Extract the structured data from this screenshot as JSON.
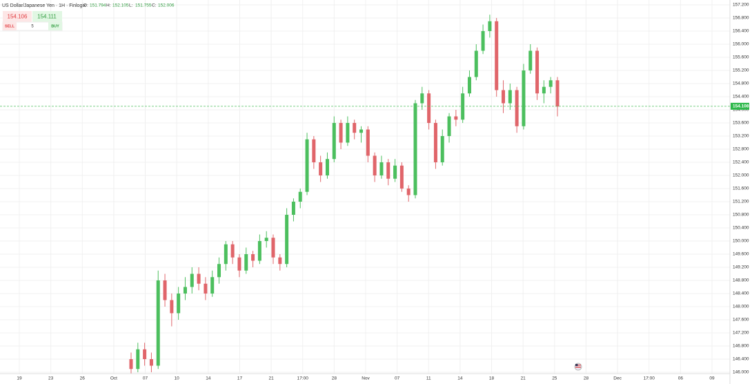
{
  "header": {
    "title": "US Dollar/Japanese Yen · 1H · Finlogix",
    "ohlc": [
      {
        "label": "O:",
        "value": 151.794
      },
      {
        "label": "H:",
        "value": 152.105
      },
      {
        "label": "L:",
        "value": 151.755
      },
      {
        "label": "C:",
        "value": 152.006
      }
    ]
  },
  "trade": {
    "sell_price": 154.106,
    "buy_price": 154.111,
    "quantity": 5,
    "sell": "SELL",
    "buy": "BUY"
  },
  "chart_data": {
    "type": "candlestick",
    "up_color": "#4cbf5e",
    "down_color": "#e0656a",
    "grid": true,
    "ylim": [
      146,
      157.2
    ],
    "yticks": [
      {
        "value": 157.2,
        "label": "157.200"
      },
      {
        "value": 156.8,
        "label": "156.800"
      },
      {
        "value": 156.4,
        "label": "156.400"
      },
      {
        "value": 156,
        "label": "156.000"
      },
      {
        "value": 155.6,
        "label": "155.600"
      },
      {
        "value": 155.2,
        "label": "155.200"
      },
      {
        "value": 154.8,
        "label": "154.800"
      },
      {
        "value": 154.4,
        "label": "154.400"
      },
      {
        "value": 154,
        "label": "154.000"
      },
      {
        "value": 153.6,
        "label": "153.600"
      },
      {
        "value": 153.2,
        "label": "153.200"
      },
      {
        "value": 152.8,
        "label": "152.800"
      },
      {
        "value": 152.4,
        "label": "152.400"
      },
      {
        "value": 152,
        "label": "152.000"
      },
      {
        "value": 151.6,
        "label": "151.600"
      },
      {
        "value": 151.2,
        "label": "151.200"
      },
      {
        "value": 150.8,
        "label": "150.800"
      },
      {
        "value": 150.4,
        "label": "150.400"
      },
      {
        "value": 150,
        "label": "150.000"
      },
      {
        "value": 149.6,
        "label": "149.600"
      },
      {
        "value": 149.2,
        "label": "149.200"
      },
      {
        "value": 148.8,
        "label": "148.800"
      },
      {
        "value": 148.4,
        "label": "148.400"
      },
      {
        "value": 148,
        "label": "148.000"
      },
      {
        "value": 147.6,
        "label": "147.600"
      },
      {
        "value": 147.2,
        "label": "147.200"
      },
      {
        "value": 146.8,
        "label": "146.800"
      },
      {
        "value": 146.4,
        "label": "146.400"
      },
      {
        "value": 146,
        "label": "146.000"
      }
    ],
    "x_labels": [
      "19",
      "23",
      "26",
      "Oct",
      "07",
      "10",
      "14",
      "17",
      "21",
      "17:00",
      "28",
      "Nov",
      "07",
      "11",
      "14",
      "18",
      "21",
      "25",
      "28",
      "Dec",
      "17:00",
      "06",
      "09"
    ],
    "last_price": {
      "value": 154.108,
      "label": "154.108"
    },
    "candles": [
      [
        146.4,
        146.6,
        145.9,
        146.1
      ],
      [
        146.1,
        146.9,
        146.0,
        146.7
      ],
      [
        146.7,
        146.9,
        146.2,
        146.4
      ],
      [
        146.4,
        146.6,
        146.0,
        146.2
      ],
      [
        146.2,
        149.1,
        146.1,
        148.8
      ],
      [
        148.8,
        149.0,
        148.0,
        148.2
      ],
      [
        148.2,
        148.4,
        147.4,
        147.8
      ],
      [
        147.8,
        148.6,
        147.6,
        148.4
      ],
      [
        148.4,
        148.9,
        148.2,
        148.6
      ],
      [
        148.6,
        149.2,
        148.4,
        149.0
      ],
      [
        149.0,
        149.2,
        148.5,
        148.7
      ],
      [
        148.7,
        148.9,
        148.2,
        148.4
      ],
      [
        148.4,
        149.1,
        148.3,
        148.9
      ],
      [
        148.9,
        149.5,
        148.7,
        149.3
      ],
      [
        149.3,
        150.0,
        149.1,
        149.9
      ],
      [
        149.9,
        150.0,
        149.3,
        149.5
      ],
      [
        149.5,
        149.6,
        148.9,
        149.1
      ],
      [
        149.1,
        149.8,
        149.0,
        149.6
      ],
      [
        149.6,
        149.7,
        149.2,
        149.4
      ],
      [
        149.4,
        150.2,
        149.3,
        150.0
      ],
      [
        150.0,
        150.3,
        149.8,
        150.1
      ],
      [
        150.1,
        150.2,
        149.3,
        149.5
      ],
      [
        149.5,
        149.6,
        149.1,
        149.3
      ],
      [
        149.3,
        151.0,
        149.2,
        150.8
      ],
      [
        150.8,
        151.3,
        150.6,
        151.2
      ],
      [
        151.2,
        151.6,
        151.0,
        151.5
      ],
      [
        151.5,
        153.3,
        151.4,
        153.1
      ],
      [
        153.1,
        153.2,
        152.2,
        152.4
      ],
      [
        152.4,
        152.6,
        151.8,
        152.0
      ],
      [
        152.0,
        152.7,
        151.9,
        152.5
      ],
      [
        152.5,
        153.8,
        152.4,
        153.6
      ],
      [
        153.6,
        153.7,
        152.8,
        153.0
      ],
      [
        153.0,
        153.8,
        152.9,
        153.6
      ],
      [
        153.6,
        153.7,
        153.1,
        153.3
      ],
      [
        153.3,
        153.5,
        153.0,
        153.4
      ],
      [
        153.4,
        153.5,
        152.4,
        152.6
      ],
      [
        152.6,
        152.7,
        151.8,
        152.0
      ],
      [
        152.0,
        152.6,
        151.9,
        152.4
      ],
      [
        152.4,
        152.5,
        151.7,
        151.9
      ],
      [
        151.9,
        152.5,
        151.8,
        152.3
      ],
      [
        152.3,
        152.4,
        151.5,
        151.6
      ],
      [
        151.6,
        151.7,
        151.2,
        151.4
      ],
      [
        151.4,
        154.3,
        151.3,
        154.2
      ],
      [
        154.2,
        154.7,
        154.0,
        154.5
      ],
      [
        154.5,
        154.6,
        153.4,
        153.6
      ],
      [
        153.6,
        153.7,
        152.2,
        152.4
      ],
      [
        152.4,
        153.4,
        152.3,
        153.2
      ],
      [
        153.2,
        153.9,
        153.0,
        153.8
      ],
      [
        153.8,
        154.0,
        153.5,
        153.7
      ],
      [
        153.7,
        154.7,
        153.6,
        154.5
      ],
      [
        154.5,
        155.2,
        154.4,
        155.0
      ],
      [
        155.0,
        156.0,
        154.9,
        155.8
      ],
      [
        155.8,
        156.6,
        155.7,
        156.4
      ],
      [
        156.4,
        156.9,
        156.2,
        156.7
      ],
      [
        156.7,
        156.8,
        154.4,
        154.6
      ],
      [
        154.6,
        154.9,
        153.9,
        154.2
      ],
      [
        154.2,
        154.8,
        154.0,
        154.6
      ],
      [
        154.6,
        154.7,
        153.3,
        153.5
      ],
      [
        153.5,
        155.4,
        153.4,
        155.2
      ],
      [
        155.2,
        156.0,
        155.1,
        155.8
      ],
      [
        155.8,
        155.9,
        154.3,
        154.5
      ],
      [
        154.5,
        154.9,
        154.2,
        154.7
      ],
      [
        154.7,
        155.0,
        154.5,
        154.9
      ],
      [
        154.9,
        155.0,
        153.8,
        154.1
      ]
    ]
  }
}
